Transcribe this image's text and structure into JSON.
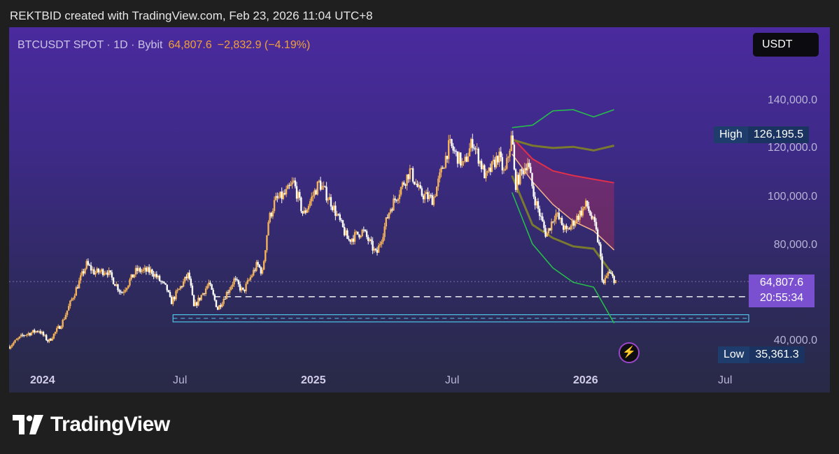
{
  "header": {
    "credit": "REKTBID created with TradingView.com, Feb 23, 2026 11:04 UTC+8"
  },
  "symbol": {
    "label": "BTCUSDT SPOT · 1D · Bybit",
    "price": "64,807.6",
    "change": "−2,832.9 (−4.19%)"
  },
  "currency_button": "USDT",
  "y_ticks": [
    "140,000.0",
    "120,000.0",
    "100,000.0",
    "80,000.0",
    "40,000.0"
  ],
  "high_tag": {
    "label": "High",
    "value": "126,195.5"
  },
  "low_tag": {
    "label": "Low",
    "value": "35,361.3"
  },
  "last_price_tag": {
    "price": "64,807.6",
    "countdown": "20:55:34"
  },
  "x_ticks": [
    {
      "label": "2024",
      "bold": true
    },
    {
      "label": "Jul",
      "bold": false
    },
    {
      "label": "2025",
      "bold": true
    },
    {
      "label": "Jul",
      "bold": false
    },
    {
      "label": "2026",
      "bold": true
    },
    {
      "label": "Jul",
      "bold": false
    }
  ],
  "icons": {
    "alert": "lightning-bolt-icon",
    "logo": "tradingview-logo-icon"
  },
  "brand": {
    "name": "TradingView"
  },
  "colors": {
    "candle_up": "#f3b25a",
    "candle_down": "#ffffff",
    "band_outer": "#26c24a",
    "band_mid": "#7a7a2e",
    "band_fill": "#c8305a",
    "support": "#ffffff",
    "zone": "#4fc3e8"
  },
  "chart_data": {
    "type": "line",
    "title": "BTCUSDT SPOT · 1D · Bybit",
    "ylim": [
      35000,
      150000
    ],
    "xlim": [
      "2023-12-01",
      "2026-08-15"
    ],
    "last_price": 64807.6,
    "high": 126195.5,
    "low": 35361.3,
    "series": [
      {
        "values": [
          [
            "2023-12-01",
            37800
          ],
          [
            "2023-12-20",
            42500
          ],
          [
            "2024-01-10",
            44500
          ],
          [
            "2024-01-23",
            39800
          ],
          [
            "2024-02-10",
            47500
          ],
          [
            "2024-02-28",
            61000
          ],
          [
            "2024-03-14",
            72000
          ],
          [
            "2024-03-25",
            68500
          ],
          [
            "2024-04-10",
            69500
          ],
          [
            "2024-04-30",
            60000
          ],
          [
            "2024-05-20",
            69500
          ],
          [
            "2024-06-10",
            69000
          ],
          [
            "2024-06-30",
            61500
          ],
          [
            "2024-07-05",
            56000
          ],
          [
            "2024-07-29",
            68000
          ],
          [
            "2024-08-05",
            54000
          ],
          [
            "2024-08-25",
            64000
          ],
          [
            "2024-09-06",
            53500
          ],
          [
            "2024-09-28",
            65500
          ],
          [
            "2024-10-10",
            60500
          ],
          [
            "2024-10-29",
            72000
          ],
          [
            "2024-11-05",
            68500
          ],
          [
            "2024-11-13",
            90000
          ],
          [
            "2024-11-22",
            98500
          ],
          [
            "2024-12-05",
            101000
          ],
          [
            "2024-12-17",
            106000
          ],
          [
            "2024-12-30",
            92500
          ],
          [
            "2025-01-20",
            106000
          ],
          [
            "2025-02-05",
            98000
          ],
          [
            "2025-02-28",
            82000
          ],
          [
            "2025-03-20",
            86000
          ],
          [
            "2025-04-07",
            76000
          ],
          [
            "2025-04-25",
            95000
          ],
          [
            "2025-05-22",
            111000
          ],
          [
            "2025-06-05",
            101500
          ],
          [
            "2025-06-22",
            99000
          ],
          [
            "2025-07-14",
            122000
          ],
          [
            "2025-08-02",
            113000
          ],
          [
            "2025-08-14",
            123500
          ],
          [
            "2025-09-01",
            108000
          ],
          [
            "2025-09-18",
            117500
          ],
          [
            "2025-09-26",
            109000
          ],
          [
            "2025-10-06",
            126195.5
          ],
          [
            "2025-10-10",
            105000
          ],
          [
            "2025-10-27",
            115000
          ],
          [
            "2025-11-04",
            101000
          ],
          [
            "2025-11-21",
            84000
          ],
          [
            "2025-12-03",
            93500
          ],
          [
            "2025-12-18",
            85500
          ],
          [
            "2026-01-14",
            97000
          ],
          [
            "2026-01-25",
            88000
          ],
          [
            "2026-02-01",
            78000
          ],
          [
            "2026-02-05",
            63000
          ],
          [
            "2026-02-12",
            68500
          ],
          [
            "2026-02-23",
            64807.6
          ]
        ]
      }
    ],
    "support_line": 58500,
    "support_zone": [
      48000,
      51000
    ],
    "bands": {
      "start": "2025-10-06",
      "end": "2026-02-20",
      "upper_outer": [
        [
          129000
        ],
        [
          130000
        ],
        [
          136000
        ],
        [
          136500
        ],
        [
          133500
        ],
        [
          136500
        ]
      ],
      "upper_mid": [
        [
          124000
        ],
        [
          121500
        ],
        [
          120500
        ],
        [
          121000
        ],
        [
          119500
        ],
        [
          121500
        ]
      ],
      "base_top": [
        [
          125000
        ],
        [
          116000
        ],
        [
          111000
        ],
        [
          109000
        ],
        [
          107500
        ],
        [
          106000
        ]
      ],
      "base_bottom": [
        [
          118000
        ],
        [
          106500
        ],
        [
          97000
        ],
        [
          90000
        ],
        [
          86000
        ],
        [
          78000
        ]
      ],
      "lower_mid": [
        [
          109000
        ],
        [
          88500
        ],
        [
          83000
        ],
        [
          79500
        ],
        [
          78500
        ],
        [
          67000
        ]
      ],
      "lower_outer": [
        [
          102000
        ],
        [
          80500
        ],
        [
          70500
        ],
        [
          64500
        ],
        [
          62500
        ],
        [
          47500
        ]
      ]
    }
  }
}
